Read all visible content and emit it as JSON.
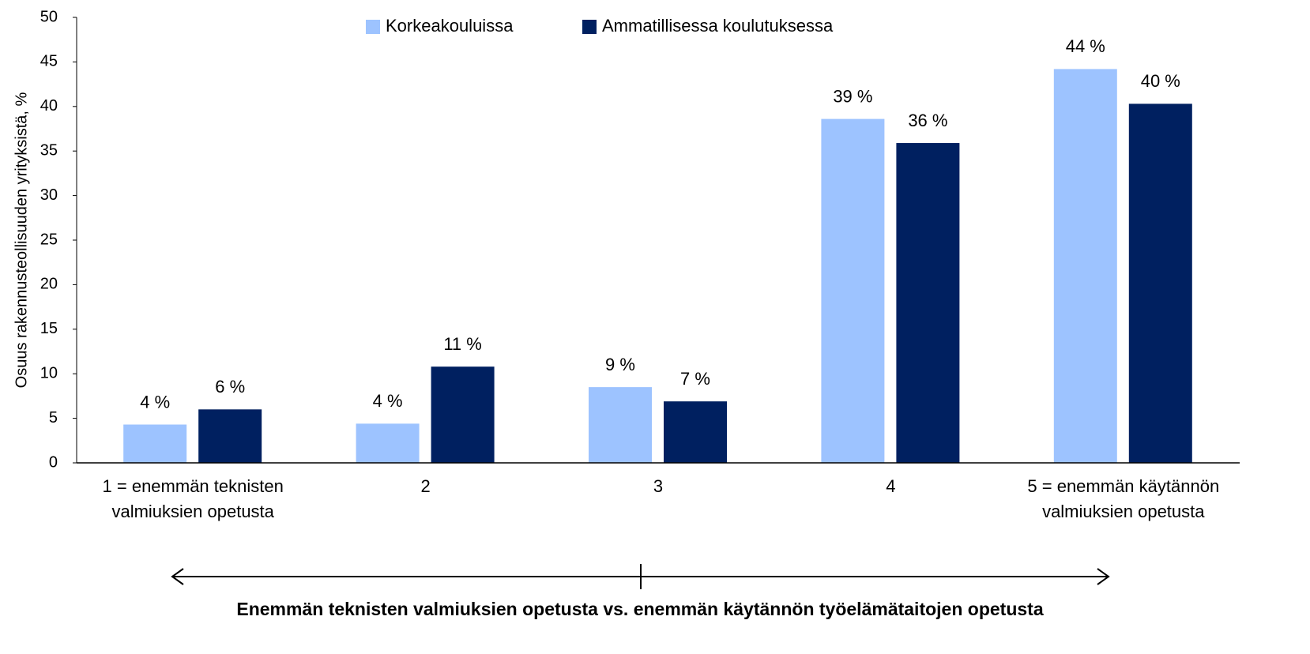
{
  "chart_data": {
    "type": "bar",
    "y_label": "Osuus rakennusteollisuuden yrityksistä, %",
    "x_label": "Enemmän teknisten valmiuksien opetusta vs. enemmän käytännön työelämätaitojen opetusta",
    "categories": [
      "1 = enemmän teknisten valmiuksien opetusta",
      "2",
      "3",
      "4",
      "5 = enemmän käytännön valmiuksien opetusta"
    ],
    "series": [
      {
        "name": "Korkeakouluissa",
        "color": "#9dc3ff",
        "values": [
          4.3,
          4.4,
          8.5,
          38.6,
          44.2
        ],
        "value_labels": [
          "4 %",
          "4 %",
          "9 %",
          "39 %",
          "44 %"
        ]
      },
      {
        "name": "Ammatillisessa koulutuksessa",
        "color": "#002060",
        "values": [
          6.0,
          10.8,
          6.9,
          35.9,
          40.3
        ],
        "value_labels": [
          "6 %",
          "11 %",
          "7 %",
          "36 %",
          "40 %"
        ]
      }
    ],
    "ylim": [
      0,
      50
    ],
    "yticks": [
      0,
      5,
      10,
      15,
      20,
      25,
      30,
      35,
      40,
      45,
      50
    ],
    "legend": "top"
  }
}
